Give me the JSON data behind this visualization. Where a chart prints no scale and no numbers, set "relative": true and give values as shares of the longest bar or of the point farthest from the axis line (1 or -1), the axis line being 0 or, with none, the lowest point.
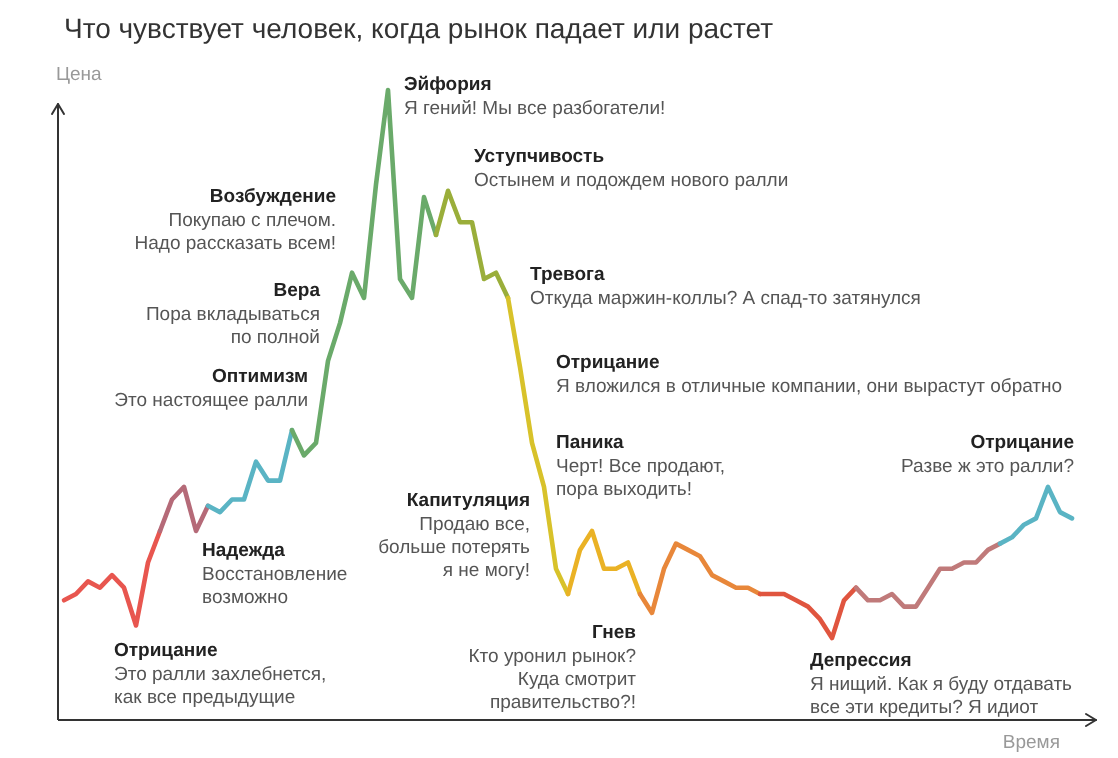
{
  "chart_data": {
    "type": "line",
    "relative": true,
    "title": "Что чувствует человек, когда рынок падает или растет",
    "xlabel": "Время",
    "ylabel": "Цена",
    "categories": [
      null,
      null,
      null,
      null,
      null,
      null,
      null,
      null,
      null,
      null,
      null,
      null,
      null,
      null,
      null,
      null,
      null,
      null,
      null,
      null,
      null,
      null,
      null,
      null,
      null,
      null,
      null,
      null,
      null,
      null,
      null,
      null,
      null,
      null,
      null,
      null,
      null,
      null,
      null,
      null,
      null,
      null,
      null,
      null,
      null,
      null,
      null,
      null,
      null,
      null,
      null,
      null,
      null,
      null,
      null,
      null,
      null,
      null,
      null,
      null,
      null,
      null,
      null,
      null,
      null,
      null,
      null,
      null,
      null,
      null,
      null,
      null,
      null,
      null,
      null,
      null,
      null,
      null,
      null,
      null,
      null,
      null,
      null,
      null,
      null
    ],
    "line_style": "solid",
    "marker": "none",
    "series": [
      {
        "color": "#e8564f",
        "values": [
          0.19,
          0.2,
          0.22,
          0.21,
          0.23,
          0.21,
          0.15,
          0.25,
          0.3,
          null,
          null,
          null,
          null,
          null,
          null,
          null,
          null,
          null,
          null,
          null,
          null,
          null,
          null,
          null,
          null,
          null,
          null,
          null,
          null,
          null,
          null,
          null,
          null,
          null,
          null,
          null,
          null,
          null,
          null,
          null,
          null,
          null,
          null,
          null,
          null,
          null,
          null,
          null,
          null,
          null,
          null,
          null,
          null,
          null,
          null,
          null,
          null,
          null,
          null,
          null,
          null,
          null,
          null,
          null,
          null,
          null,
          null,
          null,
          null,
          null,
          null,
          null,
          null,
          null,
          null,
          null,
          null,
          null,
          null,
          null,
          null,
          null,
          null,
          null,
          null
        ]
      },
      {
        "color": "#b56a78",
        "values": [
          null,
          null,
          null,
          null,
          null,
          null,
          null,
          null,
          0.3,
          0.35,
          0.37,
          0.3,
          0.34,
          null,
          null,
          null,
          null,
          null,
          null,
          null,
          null,
          null,
          null,
          null,
          null,
          null,
          null,
          null,
          null,
          null,
          null,
          null,
          null,
          null,
          null,
          null,
          null,
          null,
          null,
          null,
          null,
          null,
          null,
          null,
          null,
          null,
          null,
          null,
          null,
          null,
          null,
          null,
          null,
          null,
          null,
          null,
          null,
          null,
          null,
          null,
          null,
          null,
          null,
          null,
          null,
          null,
          null,
          null,
          null,
          null,
          null,
          null,
          null,
          null,
          null,
          null,
          null,
          null,
          null,
          null,
          null,
          null,
          null,
          null,
          null
        ]
      },
      {
        "color": "#5ab4c4",
        "values": [
          null,
          null,
          null,
          null,
          null,
          null,
          null,
          null,
          null,
          null,
          null,
          null,
          0.34,
          0.33,
          0.35,
          0.35,
          0.41,
          0.38,
          0.38,
          0.46,
          null,
          null,
          null,
          null,
          null,
          null,
          null,
          null,
          null,
          null,
          null,
          null,
          null,
          null,
          null,
          null,
          null,
          null,
          null,
          null,
          null,
          null,
          null,
          null,
          null,
          null,
          null,
          null,
          null,
          null,
          null,
          null,
          null,
          null,
          null,
          null,
          null,
          null,
          null,
          null,
          null,
          null,
          null,
          null,
          null,
          null,
          null,
          null,
          null,
          null,
          null,
          null,
          null,
          null,
          null,
          null,
          null,
          null,
          null,
          null,
          null,
          null,
          null,
          null,
          null
        ]
      },
      {
        "color": "#6aaa6a",
        "values": [
          null,
          null,
          null,
          null,
          null,
          null,
          null,
          null,
          null,
          null,
          null,
          null,
          null,
          null,
          null,
          null,
          null,
          null,
          null,
          0.46,
          0.42,
          0.44,
          0.57,
          0.63,
          0.71,
          0.67,
          0.85,
          1.0,
          0.7,
          0.67,
          0.83,
          0.77,
          null,
          null,
          null,
          null,
          null,
          null,
          null,
          null,
          null,
          null,
          null,
          null,
          null,
          null,
          null,
          null,
          null,
          null,
          null,
          null,
          null,
          null,
          null,
          null,
          null,
          null,
          null,
          null,
          null,
          null,
          null,
          null,
          null,
          null,
          null,
          null,
          null,
          null,
          null,
          null,
          null,
          null,
          null,
          null,
          null,
          null,
          null,
          null,
          null,
          null,
          null,
          null,
          null
        ]
      },
      {
        "color": "#9aae3a",
        "values": [
          null,
          null,
          null,
          null,
          null,
          null,
          null,
          null,
          null,
          null,
          null,
          null,
          null,
          null,
          null,
          null,
          null,
          null,
          null,
          null,
          null,
          null,
          null,
          null,
          null,
          null,
          null,
          null,
          null,
          null,
          null,
          0.77,
          0.84,
          0.79,
          0.79,
          0.7,
          0.71,
          0.67,
          null,
          null,
          null,
          null,
          null,
          null,
          null,
          null,
          null,
          null,
          null,
          null,
          null,
          null,
          null,
          null,
          null,
          null,
          null,
          null,
          null,
          null,
          null,
          null,
          null,
          null,
          null,
          null,
          null,
          null,
          null,
          null,
          null,
          null,
          null,
          null,
          null,
          null,
          null,
          null,
          null,
          null,
          null,
          null,
          null,
          null,
          null
        ]
      },
      {
        "color": "#d8c22a",
        "values": [
          null,
          null,
          null,
          null,
          null,
          null,
          null,
          null,
          null,
          null,
          null,
          null,
          null,
          null,
          null,
          null,
          null,
          null,
          null,
          null,
          null,
          null,
          null,
          null,
          null,
          null,
          null,
          null,
          null,
          null,
          null,
          null,
          null,
          null,
          null,
          null,
          null,
          0.67,
          0.56,
          0.44,
          0.37,
          0.24,
          0.2,
          null,
          null,
          null,
          null,
          null,
          null,
          null,
          null,
          null,
          null,
          null,
          null,
          null,
          null,
          null,
          null,
          null,
          null,
          null,
          null,
          null,
          null,
          null,
          null,
          null,
          null,
          null,
          null,
          null,
          null,
          null,
          null,
          null,
          null,
          null,
          null,
          null,
          null,
          null,
          null,
          null,
          null
        ]
      },
      {
        "color": "#eab225",
        "values": [
          null,
          null,
          null,
          null,
          null,
          null,
          null,
          null,
          null,
          null,
          null,
          null,
          null,
          null,
          null,
          null,
          null,
          null,
          null,
          null,
          null,
          null,
          null,
          null,
          null,
          null,
          null,
          null,
          null,
          null,
          null,
          null,
          null,
          null,
          null,
          null,
          null,
          null,
          null,
          null,
          null,
          null,
          0.2,
          0.27,
          0.3,
          0.24,
          0.24,
          0.25,
          0.2,
          null,
          null,
          null,
          null,
          null,
          null,
          null,
          null,
          null,
          null,
          null,
          null,
          null,
          null,
          null,
          null,
          null,
          null,
          null,
          null,
          null,
          null,
          null,
          null,
          null,
          null,
          null,
          null,
          null,
          null,
          null,
          null,
          null,
          null,
          null,
          null
        ]
      },
      {
        "color": "#e8873a",
        "values": [
          null,
          null,
          null,
          null,
          null,
          null,
          null,
          null,
          null,
          null,
          null,
          null,
          null,
          null,
          null,
          null,
          null,
          null,
          null,
          null,
          null,
          null,
          null,
          null,
          null,
          null,
          null,
          null,
          null,
          null,
          null,
          null,
          null,
          null,
          null,
          null,
          null,
          null,
          null,
          null,
          null,
          null,
          null,
          null,
          null,
          null,
          null,
          null,
          0.2,
          0.17,
          0.24,
          0.28,
          0.27,
          0.26,
          0.23,
          0.22,
          0.21,
          0.21,
          0.2,
          null,
          null,
          null,
          null,
          null,
          null,
          null,
          null,
          null,
          null,
          null,
          null,
          null,
          null,
          null,
          null,
          null,
          null,
          null,
          null,
          null,
          null,
          null,
          null,
          null,
          null
        ]
      },
      {
        "color": "#e0553f",
        "values": [
          null,
          null,
          null,
          null,
          null,
          null,
          null,
          null,
          null,
          null,
          null,
          null,
          null,
          null,
          null,
          null,
          null,
          null,
          null,
          null,
          null,
          null,
          null,
          null,
          null,
          null,
          null,
          null,
          null,
          null,
          null,
          null,
          null,
          null,
          null,
          null,
          null,
          null,
          null,
          null,
          null,
          null,
          null,
          null,
          null,
          null,
          null,
          null,
          null,
          null,
          null,
          null,
          null,
          null,
          null,
          null,
          null,
          null,
          0.2,
          0.2,
          0.2,
          0.19,
          0.18,
          0.16,
          0.13,
          0.19,
          0.21,
          null,
          null,
          null,
          null,
          null,
          null,
          null,
          null,
          null,
          null,
          null,
          null,
          null,
          null,
          null,
          null,
          null,
          null
        ]
      },
      {
        "color": "#c07a7a",
        "values": [
          null,
          null,
          null,
          null,
          null,
          null,
          null,
          null,
          null,
          null,
          null,
          null,
          null,
          null,
          null,
          null,
          null,
          null,
          null,
          null,
          null,
          null,
          null,
          null,
          null,
          null,
          null,
          null,
          null,
          null,
          null,
          null,
          null,
          null,
          null,
          null,
          null,
          null,
          null,
          null,
          null,
          null,
          null,
          null,
          null,
          null,
          null,
          null,
          null,
          null,
          null,
          null,
          null,
          null,
          null,
          null,
          null,
          null,
          null,
          null,
          null,
          null,
          null,
          null,
          null,
          null,
          0.21,
          0.19,
          0.19,
          0.2,
          0.18,
          0.18,
          0.21,
          0.24,
          0.24,
          0.25,
          0.25,
          0.27,
          0.28,
          null,
          null,
          null,
          null,
          null,
          null
        ]
      },
      {
        "color": "#5ab4c4",
        "values": [
          null,
          null,
          null,
          null,
          null,
          null,
          null,
          null,
          null,
          null,
          null,
          null,
          null,
          null,
          null,
          null,
          null,
          null,
          null,
          null,
          null,
          null,
          null,
          null,
          null,
          null,
          null,
          null,
          null,
          null,
          null,
          null,
          null,
          null,
          null,
          null,
          null,
          null,
          null,
          null,
          null,
          null,
          null,
          null,
          null,
          null,
          null,
          null,
          null,
          null,
          null,
          null,
          null,
          null,
          null,
          null,
          null,
          null,
          null,
          null,
          null,
          null,
          null,
          null,
          null,
          null,
          null,
          null,
          null,
          null,
          null,
          null,
          null,
          null,
          null,
          null,
          null,
          null,
          0.28,
          0.29,
          0.31,
          0.32,
          0.37,
          0.33,
          0.32
        ]
      }
    ],
    "annotations": [
      "Эйфория\nЯ гений! Мы все разбогатели!",
      "Возбуждение\nПокупаю с плечом.\nНадо рассказать всем!",
      "Уступчивость\nОстынем и подождем нового ралли",
      "Вера\nПора вкладываться\nпо полной",
      "Тревога\nОткуда маржин-коллы? А спад-то затянулся",
      "Оптимизм\nЭто настоящее ралли",
      "Отрицание\nЯ вложился в отличные компании, они вырастут обратно",
      "Паника\nЧерт! Все продают,\nпора выходить!",
      "Отрицание\nРазве ж это ралли?",
      "Капитуляция\nПродаю все,\nбольше потерять\nя не могу!",
      "Надежда\nВосстановление\nвозможно",
      "Гнев\nКто уронил рынок?\nКуда смотрит\nправительство?!",
      "Депрессия\nЯ нищий. Как я буду отдавать\nвсе эти кредиты? Я идиот",
      "Отрицание\nЭто ралли захлебнется,\nкак все предыдущие"
    ]
  }
}
